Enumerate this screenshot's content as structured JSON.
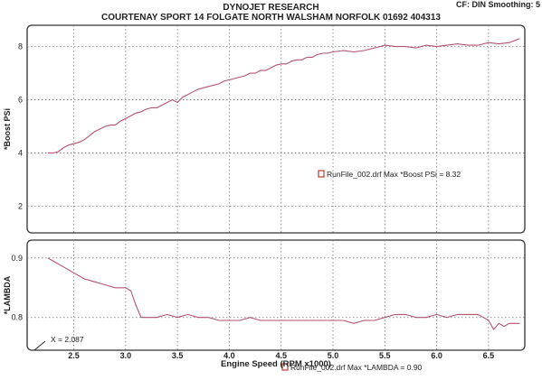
{
  "header": {
    "title": "DYNOJET RESEARCH",
    "subtitle": "COURTENAY SPORT 14 FOLGATE NORTH WALSHAM NORFOLK 01692 404313",
    "corner": "CF: DIN  Smoothing: 5"
  },
  "colors": {
    "line": "#b3536e",
    "grid": "#7a7a7a",
    "frame": "#333333",
    "legend_box": "#c0392b"
  },
  "chart_data": [
    {
      "type": "line",
      "ylabel": "*Boost PSi",
      "ylim": [
        1,
        8.8
      ],
      "yticks": [
        2,
        4,
        6,
        8
      ],
      "xlim": [
        2.05,
        6.85
      ],
      "grid": true,
      "legend": "RunFile_002.drf Max *Boost PSi = 8.32",
      "series": [
        {
          "x": [
            2.25,
            2.3,
            2.35,
            2.4,
            2.45,
            2.5,
            2.55,
            2.6,
            2.65,
            2.7,
            2.75,
            2.8,
            2.85,
            2.9,
            2.95,
            3.0,
            3.05,
            3.1,
            3.15,
            3.2,
            3.25,
            3.3,
            3.35,
            3.4,
            3.45,
            3.5,
            3.55,
            3.6,
            3.65,
            3.7,
            3.75,
            3.8,
            3.85,
            3.9,
            3.95,
            4.0,
            4.05,
            4.1,
            4.15,
            4.2,
            4.25,
            4.3,
            4.35,
            4.4,
            4.45,
            4.5,
            4.55,
            4.6,
            4.65,
            4.7,
            4.75,
            4.8,
            4.85,
            4.9,
            4.95,
            5.0,
            5.1,
            5.2,
            5.3,
            5.4,
            5.5,
            5.6,
            5.7,
            5.8,
            5.9,
            6.0,
            6.1,
            6.2,
            6.3,
            6.4,
            6.5,
            6.6,
            6.7,
            6.8
          ],
          "values": [
            4.0,
            4.0,
            4.05,
            4.2,
            4.3,
            4.35,
            4.4,
            4.5,
            4.65,
            4.8,
            4.9,
            5.0,
            5.05,
            5.05,
            5.2,
            5.3,
            5.4,
            5.5,
            5.55,
            5.65,
            5.7,
            5.7,
            5.8,
            5.9,
            6.0,
            5.9,
            6.1,
            6.2,
            6.3,
            6.4,
            6.45,
            6.5,
            6.55,
            6.6,
            6.7,
            6.75,
            6.8,
            6.85,
            6.9,
            7.0,
            7.0,
            7.1,
            7.1,
            7.2,
            7.3,
            7.35,
            7.35,
            7.45,
            7.5,
            7.5,
            7.6,
            7.6,
            7.7,
            7.75,
            7.75,
            7.8,
            7.85,
            7.8,
            7.85,
            7.95,
            8.05,
            8.0,
            8.0,
            7.95,
            8.05,
            8.0,
            8.05,
            8.1,
            8.05,
            8.05,
            8.15,
            8.1,
            8.15,
            8.3
          ]
        }
      ]
    },
    {
      "type": "line",
      "ylabel": "*LAMBDA",
      "xlabel": "Engine Speed (RPM x1000)",
      "ylim": [
        0.745,
        0.93
      ],
      "yticks": [
        0.8,
        0.9
      ],
      "xlim": [
        2.05,
        6.85
      ],
      "xticks": [
        2.5,
        3.0,
        3.5,
        4.0,
        4.5,
        5.0,
        5.5,
        6.0,
        6.5
      ],
      "grid": true,
      "legend": "RunFile_002.drf Max *LAMBDA = 0.90",
      "annotation": "X = 2.087",
      "series": [
        {
          "x": [
            2.25,
            2.3,
            2.4,
            2.5,
            2.6,
            2.7,
            2.8,
            2.9,
            3.0,
            3.05,
            3.1,
            3.15,
            3.2,
            3.3,
            3.4,
            3.5,
            3.6,
            3.7,
            3.8,
            3.9,
            4.0,
            4.1,
            4.2,
            4.3,
            4.4,
            4.5,
            4.6,
            4.7,
            4.8,
            4.9,
            5.0,
            5.1,
            5.2,
            5.3,
            5.4,
            5.5,
            5.6,
            5.7,
            5.8,
            5.9,
            6.0,
            6.1,
            6.2,
            6.3,
            6.4,
            6.45,
            6.5,
            6.55,
            6.6,
            6.65,
            6.7,
            6.8
          ],
          "values": [
            0.9,
            0.895,
            0.885,
            0.875,
            0.865,
            0.86,
            0.855,
            0.85,
            0.85,
            0.845,
            0.82,
            0.8,
            0.8,
            0.8,
            0.805,
            0.8,
            0.805,
            0.8,
            0.8,
            0.795,
            0.795,
            0.795,
            0.8,
            0.795,
            0.795,
            0.795,
            0.795,
            0.795,
            0.795,
            0.795,
            0.795,
            0.795,
            0.79,
            0.795,
            0.795,
            0.8,
            0.805,
            0.805,
            0.8,
            0.8,
            0.805,
            0.8,
            0.805,
            0.805,
            0.805,
            0.8,
            0.795,
            0.78,
            0.79,
            0.785,
            0.79,
            0.79
          ]
        }
      ]
    }
  ]
}
